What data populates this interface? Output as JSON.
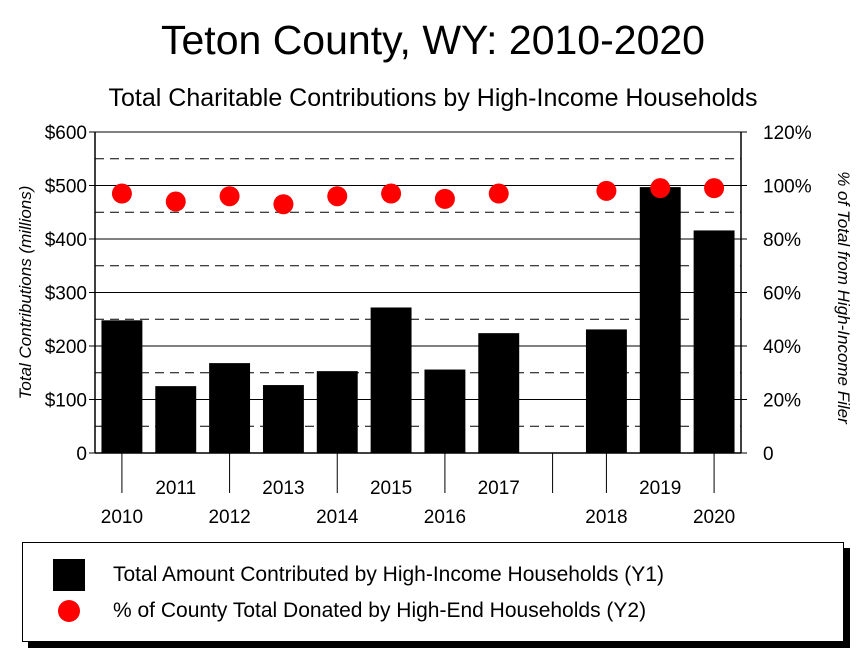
{
  "chart_data": {
    "type": "bar",
    "title": "Teton County, WY: 2010-2020",
    "subtitle": "Total Charitable Contributions by High-Income Households",
    "categories": [
      "2010",
      "2011",
      "2012",
      "2013",
      "2014",
      "2015",
      "2016",
      "2017",
      "2018",
      "2019",
      "2020"
    ],
    "series": [
      {
        "name": "Total Amount Contributed by High-Income Households (Y1)",
        "axis": "y1",
        "type": "bar",
        "color": "#000000",
        "values": [
          248,
          125,
          168,
          127,
          153,
          272,
          156,
          224,
          231,
          497,
          416
        ]
      },
      {
        "name": "% of County Total Donated by High-End Households (Y2)",
        "axis": "y2",
        "type": "scatter",
        "color": "#ff0000",
        "values": [
          97,
          94,
          96,
          93,
          96,
          97,
          95,
          97,
          98,
          99,
          99
        ]
      }
    ],
    "ylabel": "Total Contributions (millions)",
    "y2label": "% of Total from High-Income Filer",
    "ylim": [
      0,
      600
    ],
    "y2lim": [
      0,
      120
    ],
    "yticks": [
      "0",
      "$100",
      "$200",
      "$300",
      "$400",
      "$500",
      "$600"
    ],
    "y2ticks": [
      "0",
      "20%",
      "40%",
      "60%",
      "80%",
      "100%",
      "120%"
    ],
    "grid": true,
    "legend_position": "bottom"
  }
}
